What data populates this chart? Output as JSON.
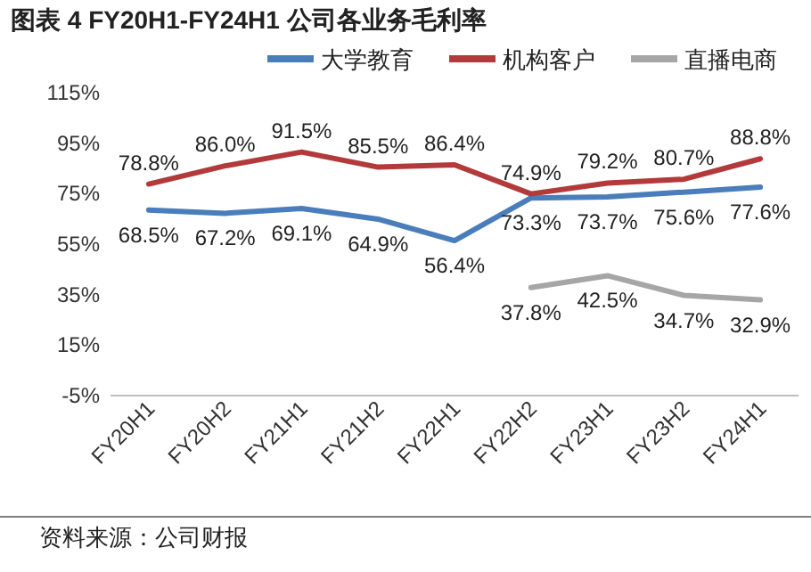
{
  "chart_data": {
    "type": "line",
    "title": "图表 4 FY20H1-FY24H1 公司各业务毛利率",
    "categories": [
      "FY20H1",
      "FY20H2",
      "FY21H1",
      "FY21H2",
      "FY22H1",
      "FY22H2",
      "FY23H1",
      "FY23H2",
      "FY24H1"
    ],
    "series": [
      {
        "name": "大学教育",
        "color": "#4a7ebb",
        "values": [
          68.5,
          67.2,
          69.1,
          64.9,
          56.4,
          73.3,
          73.7,
          75.6,
          77.6
        ],
        "value_labels": [
          "68.5%",
          "67.2%",
          "69.1%",
          "64.9%",
          "56.4%",
          "73.3%",
          "73.7%",
          "75.6%",
          "77.6%"
        ]
      },
      {
        "name": "机构客户",
        "color": "#b23a3a",
        "values": [
          78.8,
          86.0,
          91.5,
          85.5,
          86.4,
          74.9,
          79.2,
          80.7,
          88.8
        ],
        "value_labels": [
          "78.8%",
          "86.0%",
          "91.5%",
          "85.5%",
          "86.4%",
          "74.9%",
          "79.2%",
          "80.7%",
          "88.8%"
        ]
      },
      {
        "name": "直播电商",
        "color": "#a6a6a6",
        "values": [
          null,
          null,
          null,
          null,
          null,
          37.8,
          42.5,
          34.7,
          32.9
        ],
        "value_labels": [
          null,
          null,
          null,
          null,
          null,
          "37.8%",
          "42.5%",
          "34.7%",
          "32.9%"
        ]
      }
    ],
    "ylim": [
      -5,
      115
    ],
    "yticks": [
      {
        "value": 115,
        "label": "115%"
      },
      {
        "value": 95,
        "label": "95%"
      },
      {
        "value": 75,
        "label": "75%"
      },
      {
        "value": 55,
        "label": "55%"
      },
      {
        "value": 35,
        "label": "35%"
      },
      {
        "value": 15,
        "label": "15%"
      },
      {
        "value": -5,
        "label": "-5%"
      }
    ],
    "legend": "top",
    "grid": false,
    "marker": "none",
    "line_style": "solid",
    "annotations": [
      "资料来源：公司财报"
    ]
  }
}
